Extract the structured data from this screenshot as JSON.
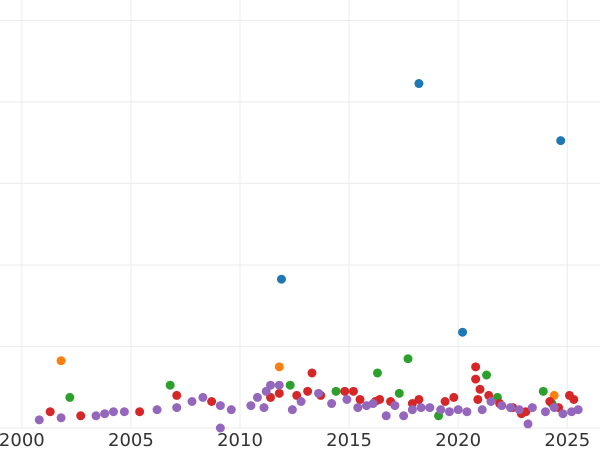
{
  "chart_data": {
    "type": "scatter",
    "xlim": [
      1999,
      2026.5
    ],
    "ylim": [
      0,
      105
    ],
    "x_ticks": [
      "2000",
      "2005",
      "2010",
      "2015",
      "2020",
      "2025"
    ],
    "grid": true,
    "legend": "none",
    "series": [
      {
        "color": "#1f77b4",
        "points": [
          [
            2018.2,
            84.5
          ],
          [
            2024.7,
            70.5
          ],
          [
            2011.9,
            36.5
          ],
          [
            2020.2,
            23.5
          ]
        ]
      },
      {
        "color": "#ff7f0e",
        "points": [
          [
            2001.8,
            16.5
          ],
          [
            2011.8,
            15
          ],
          [
            2024.4,
            8
          ]
        ]
      },
      {
        "color": "#2ca02c",
        "points": [
          [
            2002.2,
            7.5
          ],
          [
            2006.8,
            10.5
          ],
          [
            2012.3,
            10.5
          ],
          [
            2014.4,
            9
          ],
          [
            2016.3,
            13.5
          ],
          [
            2017.3,
            8.5
          ],
          [
            2017.7,
            17
          ],
          [
            2019.1,
            3
          ],
          [
            2021.3,
            13
          ],
          [
            2021.8,
            7.5
          ],
          [
            2023.9,
            9
          ],
          [
            2024.3,
            6
          ]
        ]
      },
      {
        "color": "#d62728",
        "points": [
          [
            2001.3,
            4
          ],
          [
            2002.7,
            3
          ],
          [
            2005.4,
            4
          ],
          [
            2007.1,
            8
          ],
          [
            2008.7,
            6.5
          ],
          [
            2011.4,
            7.5
          ],
          [
            2011.8,
            8.5
          ],
          [
            2012.6,
            8
          ],
          [
            2013.1,
            9
          ],
          [
            2013.3,
            13.5
          ],
          [
            2013.7,
            8
          ],
          [
            2014.8,
            9
          ],
          [
            2015.2,
            9
          ],
          [
            2015.5,
            7
          ],
          [
            2016.2,
            6.5
          ],
          [
            2016.4,
            7
          ],
          [
            2016.9,
            6.5
          ],
          [
            2017.9,
            6
          ],
          [
            2018.2,
            7
          ],
          [
            2019.4,
            6.5
          ],
          [
            2019.8,
            7.5
          ],
          [
            2020.8,
            15
          ],
          [
            2020.8,
            12
          ],
          [
            2020.9,
            7
          ],
          [
            2021.0,
            9.5
          ],
          [
            2021.4,
            8
          ],
          [
            2021.9,
            6
          ],
          [
            2022.5,
            5
          ],
          [
            2022.9,
            3.5
          ],
          [
            2023.1,
            4
          ],
          [
            2024.2,
            6.5
          ],
          [
            2024.6,
            5
          ],
          [
            2025.1,
            8
          ],
          [
            2025.3,
            7
          ]
        ]
      },
      {
        "color": "#9467bd",
        "points": [
          [
            2000.8,
            2
          ],
          [
            2001.8,
            2.5
          ],
          [
            2003.4,
            3
          ],
          [
            2003.8,
            3.5
          ],
          [
            2004.2,
            4
          ],
          [
            2004.7,
            4
          ],
          [
            2006.2,
            4.5
          ],
          [
            2007.1,
            5
          ],
          [
            2007.8,
            6.5
          ],
          [
            2008.3,
            7.5
          ],
          [
            2009.1,
            5.5
          ],
          [
            2009.1,
            0
          ],
          [
            2009.6,
            4.5
          ],
          [
            2010.5,
            5.5
          ],
          [
            2010.8,
            7.5
          ],
          [
            2011.1,
            5
          ],
          [
            2011.2,
            9
          ],
          [
            2011.4,
            10.5
          ],
          [
            2011.8,
            10.5
          ],
          [
            2012.4,
            4.5
          ],
          [
            2012.8,
            6.5
          ],
          [
            2013.6,
            8.5
          ],
          [
            2014.2,
            6
          ],
          [
            2014.9,
            7
          ],
          [
            2015.4,
            5
          ],
          [
            2015.8,
            5.5
          ],
          [
            2016.1,
            6
          ],
          [
            2016.7,
            3
          ],
          [
            2017.1,
            5.5
          ],
          [
            2017.5,
            3
          ],
          [
            2017.9,
            4.5
          ],
          [
            2018.3,
            5
          ],
          [
            2018.7,
            5
          ],
          [
            2019.2,
            4.5
          ],
          [
            2019.6,
            4
          ],
          [
            2020.0,
            4.5
          ],
          [
            2020.4,
            4
          ],
          [
            2021.1,
            4.5
          ],
          [
            2021.5,
            6.5
          ],
          [
            2022.0,
            5.5
          ],
          [
            2022.4,
            5
          ],
          [
            2022.8,
            4.5
          ],
          [
            2023.2,
            1
          ],
          [
            2023.4,
            5
          ],
          [
            2024.0,
            4
          ],
          [
            2024.4,
            5
          ],
          [
            2024.8,
            3.5
          ],
          [
            2025.2,
            4
          ],
          [
            2025.5,
            4.5
          ]
        ]
      }
    ]
  }
}
